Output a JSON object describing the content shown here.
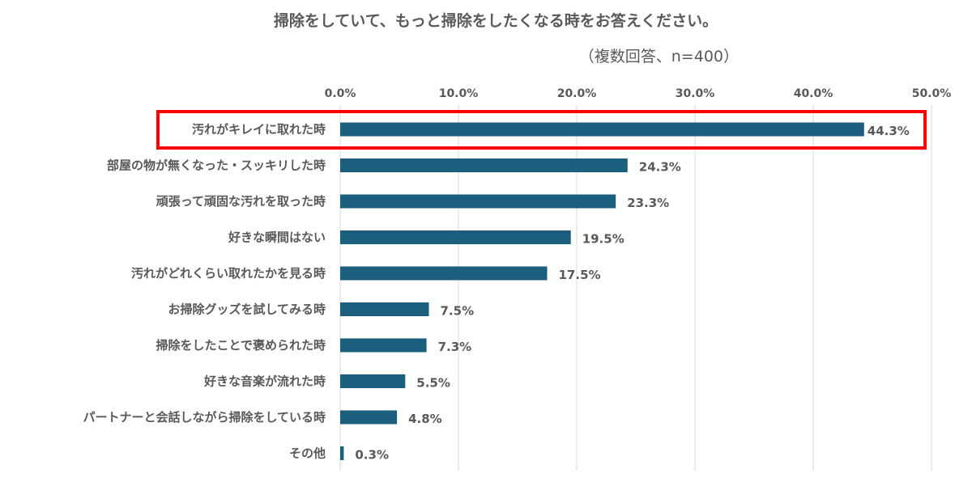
{
  "chart_data": {
    "type": "bar",
    "orientation": "horizontal",
    "title": "掃除をしていて、もっと掃除をしたくなる時をお答えください。",
    "subtitle": "（複数回答、n=400）",
    "xlabel": "",
    "ylabel": "",
    "xlim": [
      0,
      50
    ],
    "grid": true,
    "tick_labels": [
      "0.0%",
      "10.0%",
      "20.0%",
      "30.0%",
      "40.0%",
      "50.0%"
    ],
    "tick_values": [
      0,
      10,
      20,
      30,
      40,
      50
    ],
    "categories": [
      "汚れがキレイに取れた時",
      "部屋の物が無くなった・スッキリした時",
      "頑張って頑固な汚れを取った時",
      "好きな瞬間はない",
      "汚れがどれくらい取れたかを見る時",
      "お掃除グッズを試してみる時",
      "掃除をしたことで褒められた時",
      "好きな音楽が流れた時",
      "パートナーと会話しながら掃除をしている時",
      "その他"
    ],
    "values": [
      44.3,
      24.3,
      23.3,
      19.5,
      17.5,
      7.5,
      7.3,
      5.5,
      4.8,
      0.3
    ],
    "value_labels": [
      "44.3%",
      "24.3%",
      "23.3%",
      "19.5%",
      "17.5%",
      "7.5%",
      "7.3%",
      "5.5%",
      "4.8%",
      "0.3%"
    ],
    "highlighted_index": 0,
    "colors": {
      "bar": "#1b5e7e",
      "highlight": "#ff0000",
      "grid": "#d9d9d9",
      "text": "#595959"
    }
  }
}
